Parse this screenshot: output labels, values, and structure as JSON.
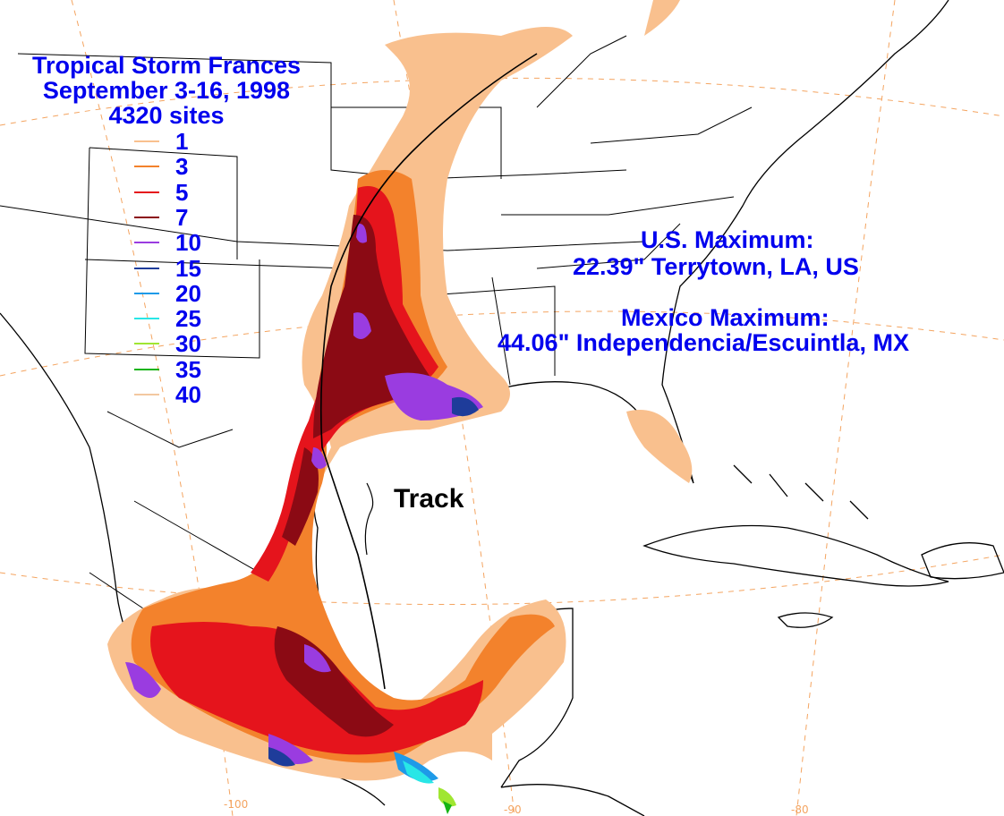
{
  "title": {
    "line1": "Tropical Storm Frances",
    "line2": "September 3-16, 1998",
    "line3": "4320 sites"
  },
  "legend": [
    {
      "value": "1",
      "color": "#f9c08e"
    },
    {
      "value": "3",
      "color": "#f3822c"
    },
    {
      "value": "5",
      "color": "#e5141c"
    },
    {
      "value": "7",
      "color": "#8b0a14"
    },
    {
      "value": "10",
      "color": "#9a3ce0"
    },
    {
      "value": "15",
      "color": "#1e3c9a"
    },
    {
      "value": "20",
      "color": "#1e9ae8"
    },
    {
      "value": "25",
      "color": "#28e6e6"
    },
    {
      "value": "30",
      "color": "#a0e632"
    },
    {
      "value": "35",
      "color": "#14b414"
    },
    {
      "value": "40",
      "color": "#f3c8a0"
    }
  ],
  "us_max": {
    "label": "U.S. Maximum:",
    "value": "22.39\" Terrytown, LA, US"
  },
  "mx_max": {
    "label": "Mexico Maximum:",
    "value": "44.06\" Independencia/Escuintla, MX"
  },
  "track_label": "Track",
  "longitudes": [
    "-100",
    "-90",
    "-80"
  ]
}
